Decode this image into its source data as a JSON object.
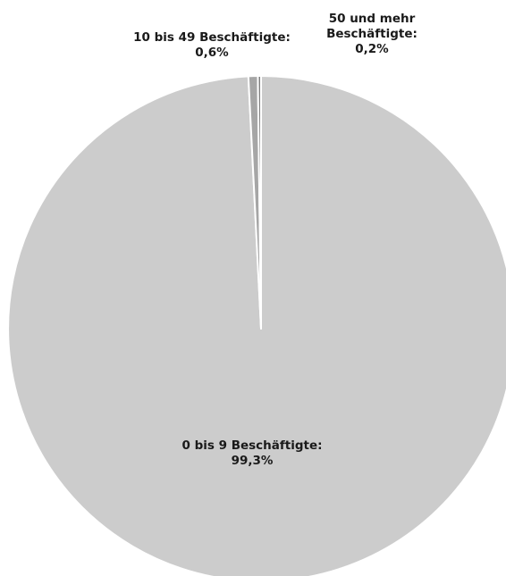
{
  "chart_data": {
    "type": "pie",
    "slices": [
      {
        "label": "0 bis 9 Beschäftigte",
        "value": 99.3,
        "value_text": "99,3%",
        "color": "#cccccc"
      },
      {
        "label": "10 bis 49 Beschäftigte",
        "value": 0.6,
        "value_text": "0,6%",
        "color": "#a6a6a6"
      },
      {
        "label": "50 und mehr Beschäftigte",
        "value": 0.2,
        "value_text": "0,2%",
        "color": "#7f7f7f"
      }
    ],
    "data_labels": [
      {
        "line1": "0 bis 9 Beschäftigte:",
        "line2": "99,3%"
      },
      {
        "line1": "10 bis 49 Beschäftigte:",
        "line2": "0,6%"
      },
      {
        "line1": "50 und mehr",
        "line2": "Beschäftigte:",
        "line3": "0,2%"
      }
    ],
    "legend": "none"
  }
}
